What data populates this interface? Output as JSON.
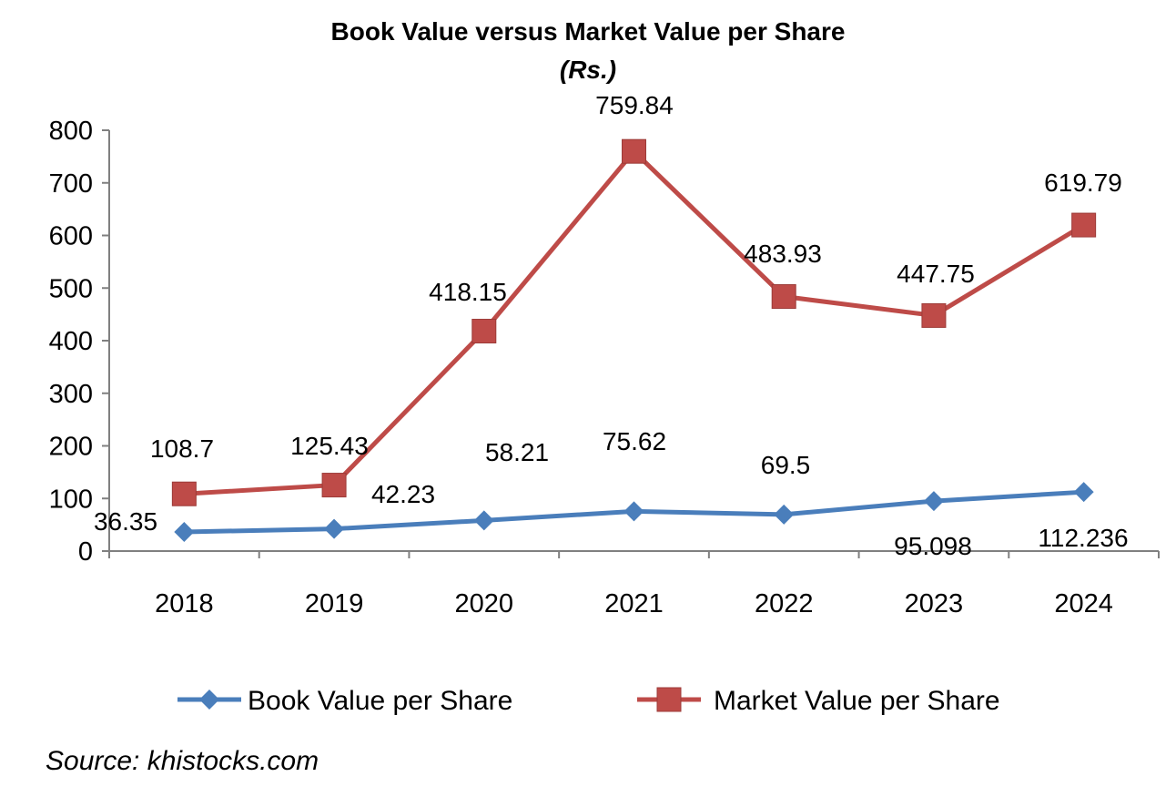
{
  "chart_data": {
    "type": "line",
    "title": "Book Value versus Market Value per Share",
    "subtitle": "(Rs.)",
    "xlabel": "",
    "ylabel": "",
    "categories": [
      "2018",
      "2019",
      "2020",
      "2021",
      "2022",
      "2023",
      "2024"
    ],
    "ylim": [
      0,
      800
    ],
    "yticks": [
      "0",
      "100",
      "200",
      "300",
      "400",
      "500",
      "600",
      "700",
      "800"
    ],
    "grid": false,
    "legend_position": "bottom",
    "series": [
      {
        "name": "Book Value per Share",
        "marker": "diamond",
        "color": "#4a7ebb",
        "values": [
          36.35,
          42.23,
          58.21,
          75.62,
          69.5,
          95.098,
          112.236
        ],
        "labels": [
          "36.35",
          "42.23",
          "58.21",
          "75.62",
          "69.5",
          "95.098",
          "112.236"
        ]
      },
      {
        "name": "Market Value per Share",
        "marker": "square",
        "color": "#be4b48",
        "values": [
          108.7,
          125.43,
          418.15,
          759.84,
          483.93,
          447.75,
          619.79
        ],
        "labels": [
          "108.7",
          "125.43",
          "418.15",
          "759.84",
          "483.93",
          "447.75",
          "619.79"
        ]
      }
    ]
  },
  "source": "Source: khistocks.com"
}
